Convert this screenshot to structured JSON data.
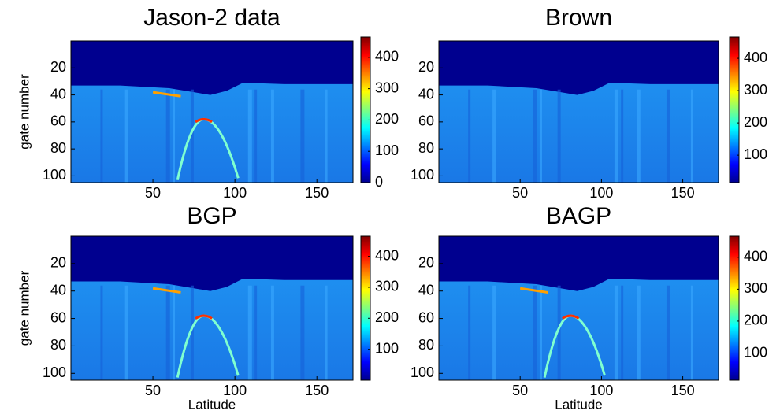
{
  "chart_data": [
    {
      "type": "heatmap",
      "title": "Jason-2 data",
      "ylabel": "gate number",
      "xlim": [
        0,
        172
      ],
      "ylim": [
        0,
        105
      ],
      "y_reversed": true,
      "xticks": [
        50,
        100,
        150
      ],
      "yticks": [
        20,
        40,
        60,
        80,
        100
      ],
      "colorbar": {
        "lim": [
          0,
          465
        ],
        "ticks": [
          0,
          100,
          200,
          300,
          400
        ]
      }
    },
    {
      "type": "heatmap",
      "title": "Brown",
      "xlim": [
        0,
        172
      ],
      "ylim": [
        0,
        105
      ],
      "y_reversed": true,
      "xticks": [
        50,
        100,
        150
      ],
      "yticks": [
        20,
        40,
        60,
        80,
        100
      ],
      "colorbar": {
        "lim": [
          15,
          466
        ],
        "ticks": [
          100,
          200,
          300,
          400
        ]
      }
    },
    {
      "type": "heatmap",
      "title": "BGP",
      "ylabel": "gate number",
      "xlabel": "Latitude",
      "xlim": [
        0,
        172
      ],
      "ylim": [
        0,
        105
      ],
      "y_reversed": true,
      "xticks": [
        50,
        100,
        150
      ],
      "yticks": [
        20,
        40,
        60,
        80,
        100
      ],
      "colorbar": {
        "lim": [
          0,
          465
        ],
        "ticks": [
          100,
          200,
          300,
          400
        ]
      }
    },
    {
      "type": "heatmap",
      "title": "BAGP",
      "xlabel": "Latitude",
      "xlim": [
        0,
        172
      ],
      "ylim": [
        0,
        105
      ],
      "y_reversed": true,
      "xticks": [
        50,
        100,
        150
      ],
      "yticks": [
        20,
        40,
        60,
        80,
        100
      ],
      "colorbar": {
        "lim": [
          15,
          466
        ],
        "ticks": [
          100,
          200,
          300,
          400
        ]
      }
    }
  ]
}
